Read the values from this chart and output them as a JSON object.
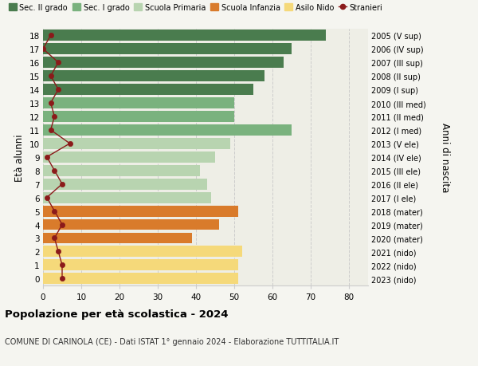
{
  "ages": [
    18,
    17,
    16,
    15,
    14,
    13,
    12,
    11,
    10,
    9,
    8,
    7,
    6,
    5,
    4,
    3,
    2,
    1,
    0
  ],
  "right_labels": [
    "2005 (V sup)",
    "2006 (IV sup)",
    "2007 (III sup)",
    "2008 (II sup)",
    "2009 (I sup)",
    "2010 (III med)",
    "2011 (II med)",
    "2012 (I med)",
    "2013 (V ele)",
    "2014 (IV ele)",
    "2015 (III ele)",
    "2016 (II ele)",
    "2017 (I ele)",
    "2018 (mater)",
    "2019 (mater)",
    "2020 (mater)",
    "2021 (nido)",
    "2022 (nido)",
    "2023 (nido)"
  ],
  "bar_values": [
    74,
    65,
    63,
    58,
    55,
    50,
    50,
    65,
    49,
    45,
    41,
    43,
    44,
    51,
    46,
    39,
    52,
    51,
    51
  ],
  "bar_colors": [
    "#4a7c4e",
    "#4a7c4e",
    "#4a7c4e",
    "#4a7c4e",
    "#4a7c4e",
    "#7ab27e",
    "#7ab27e",
    "#7ab27e",
    "#b8d4b0",
    "#b8d4b0",
    "#b8d4b0",
    "#b8d4b0",
    "#b8d4b0",
    "#d97b2b",
    "#d97b2b",
    "#d97b2b",
    "#f5d97a",
    "#f5d97a",
    "#f5d97a"
  ],
  "stranieri_values": [
    2,
    0,
    4,
    2,
    4,
    2,
    3,
    2,
    7,
    1,
    3,
    5,
    1,
    3,
    5,
    3,
    4,
    5,
    5
  ],
  "legend_labels": [
    "Sec. II grado",
    "Sec. I grado",
    "Scuola Primaria",
    "Scuola Infanzia",
    "Asilo Nido",
    "Stranieri"
  ],
  "legend_colors": [
    "#4a7c4e",
    "#7ab27e",
    "#b8d4b0",
    "#d97b2b",
    "#f5d97a",
    "#8b1a1a"
  ],
  "ylabel_left": "Età alunni",
  "ylabel_right": "Anni di nascita",
  "title": "Popolazione per età scolastica - 2024",
  "subtitle": "COMUNE DI CARINOLA (CE) - Dati ISTAT 1° gennaio 2024 - Elaborazione TUTTITALIA.IT",
  "xlim": [
    0,
    85
  ],
  "xticks": [
    0,
    10,
    20,
    30,
    40,
    50,
    60,
    70,
    80
  ],
  "background_color": "#f5f5f0",
  "bar_background": "#eeeee6",
  "grid_color": "#cccccc",
  "stranieri_line_color": "#8b1a1a",
  "stranieri_marker_color": "#8b1a1a"
}
